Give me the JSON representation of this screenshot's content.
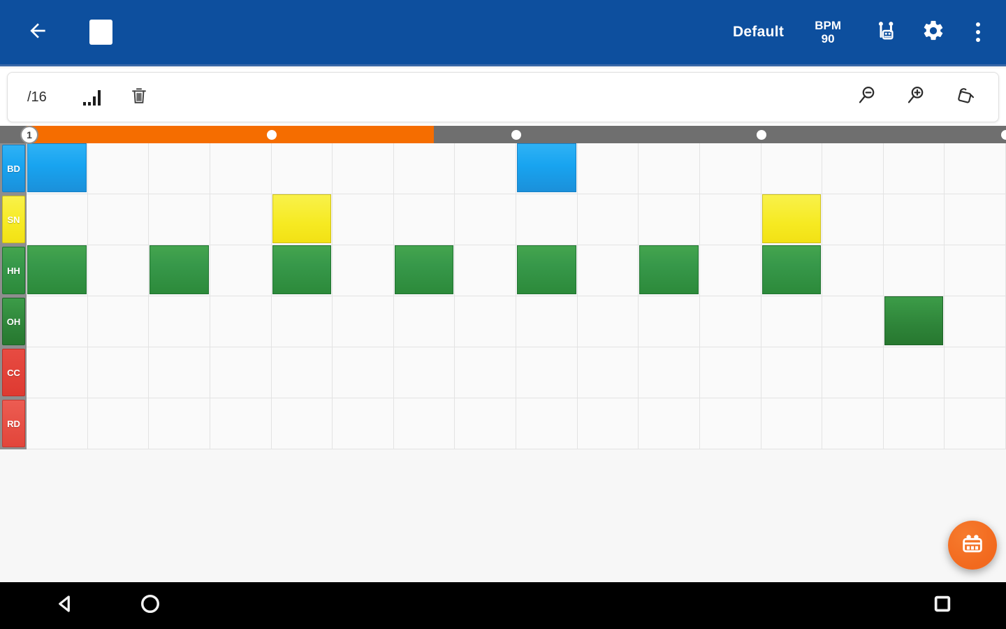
{
  "app_bar": {
    "preset_label": "Default",
    "bpm_label": "BPM",
    "bpm_value": "90",
    "background_color": "#0d4f9e",
    "icons": [
      "back-arrow-icon",
      "stop-icon",
      "drum-kit-icon",
      "settings-gear-icon",
      "overflow-menu-icon"
    ]
  },
  "toolbar": {
    "division_label": "/16",
    "icons": [
      "velocity-bars-icon",
      "trash-icon",
      "zoom-out-icon",
      "zoom-in-icon",
      "paint-fill-icon"
    ]
  },
  "timeline": {
    "bar_number": "1",
    "progress_ratio": 0.416,
    "beat_marker_ratios": [
      0.25,
      0.5,
      0.75,
      1.0
    ],
    "progress_color": "#f56d00",
    "track_color": "#6f6f6f"
  },
  "sequencer": {
    "steps": 16,
    "tracks": [
      {
        "id": "BD",
        "label": "BD",
        "color": "#1ea2ee",
        "style": "blue",
        "active_steps": [
          1,
          9
        ]
      },
      {
        "id": "SN",
        "label": "SN",
        "color": "#f6e822",
        "style": "yellow",
        "active_steps": [
          5,
          13
        ]
      },
      {
        "id": "HH",
        "label": "HH",
        "color": "#37984a",
        "style": "green",
        "active_steps": [
          1,
          3,
          5,
          7,
          9,
          11,
          13
        ]
      },
      {
        "id": "OH",
        "label": "OH",
        "color": "#2f8a3b",
        "style": "green-dark",
        "active_steps": [
          15
        ]
      },
      {
        "id": "CC",
        "label": "CC",
        "color": "#e2443b",
        "style": "red",
        "active_steps": []
      },
      {
        "id": "RD",
        "label": "RD",
        "color": "#e65a50",
        "style": "red-light",
        "active_steps": []
      }
    ]
  },
  "fab": {
    "icon": "drum-machine-icon",
    "color": "#f2691e"
  },
  "nav_bar": {
    "icons": [
      "nav-back-icon",
      "nav-home-icon",
      "nav-recents-icon"
    ]
  }
}
